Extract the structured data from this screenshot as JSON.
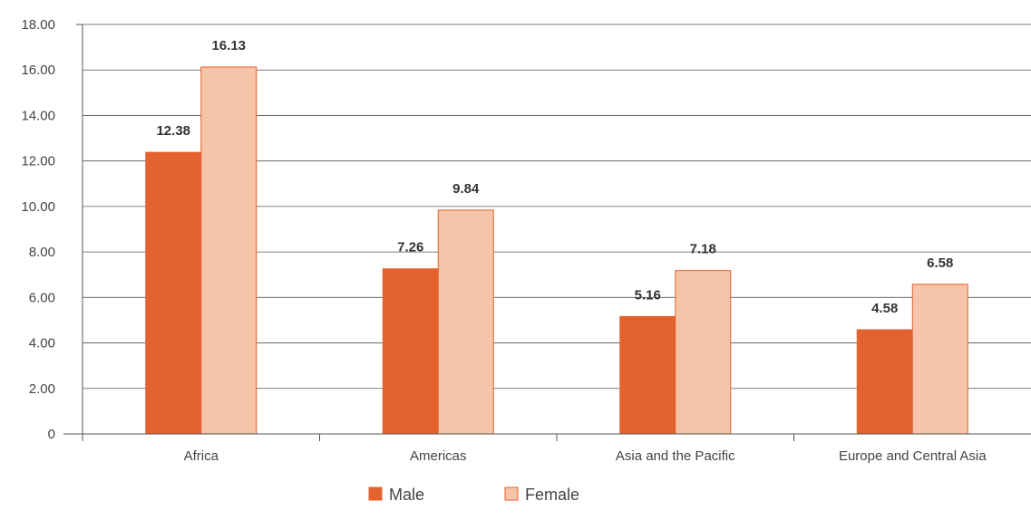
{
  "chart_data": {
    "type": "bar",
    "categories": [
      "Africa",
      "Americas",
      "Asia and the Pacific",
      "Europe and Central Asia"
    ],
    "series": [
      {
        "name": "Male",
        "values": [
          12.38,
          7.26,
          5.16,
          4.58
        ],
        "color": "#e4622e",
        "border": "#e4622e"
      },
      {
        "name": "Female",
        "values": [
          16.13,
          9.84,
          7.18,
          6.58
        ],
        "color": "#f6c4a8",
        "border": "#e4622e"
      }
    ],
    "value_labels": {
      "Male": [
        "12.38",
        "7.26",
        "5.16",
        "4.58"
      ],
      "Female": [
        "16.13",
        "9.84",
        "7.18",
        "6.58"
      ]
    },
    "yticks": [
      0,
      2,
      4,
      6,
      8,
      10,
      12,
      14,
      16,
      18
    ],
    "ytick_labels": [
      "0",
      "2.00",
      "4.00",
      "6.00",
      "8.00",
      "10.00",
      "12.00",
      "14.00",
      "16.00",
      "18.00"
    ],
    "ylim": [
      0,
      18
    ],
    "grid": true,
    "legend_position": "bottom-center"
  }
}
